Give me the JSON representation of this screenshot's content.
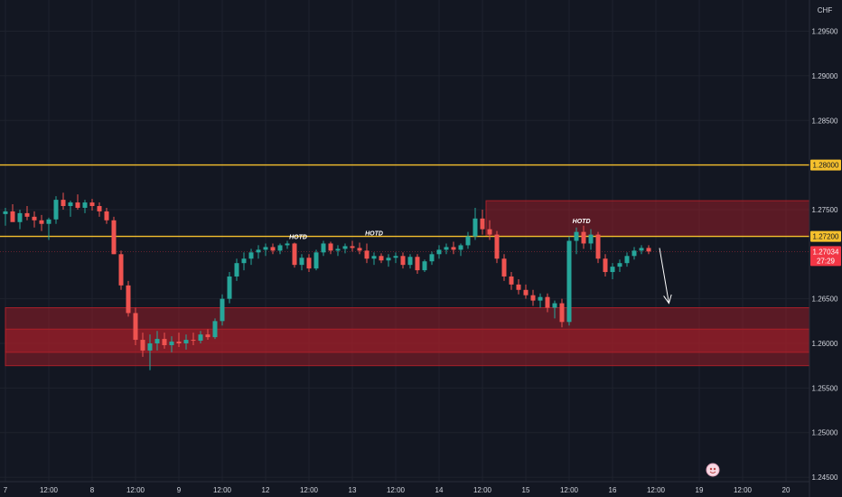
{
  "chart_data": {
    "type": "candlestick",
    "currency": "CHF",
    "ylim": [
      1.2445,
      1.2985
    ],
    "grid": true,
    "y_ticks": [
      "1.29500",
      "1.29000",
      "1.28500",
      "1.28000",
      "1.27500",
      "1.27200",
      "1.27034",
      "1.26500",
      "1.26000",
      "1.25500",
      "1.25000",
      "1.24500"
    ],
    "y_tick_values": [
      1.295,
      1.29,
      1.285,
      1.28,
      1.275,
      1.272,
      1.27034,
      1.265,
      1.26,
      1.255,
      1.25,
      1.245
    ],
    "x_ticks": [
      "7",
      "12:00",
      "8",
      "12:00",
      "9",
      "12:00",
      "12",
      "12:00",
      "13",
      "12:00",
      "14",
      "12:00",
      "15",
      "12:00",
      "16",
      "12:00",
      "19",
      "12:00",
      "20"
    ],
    "x_tick_index": [
      0,
      6,
      12,
      18,
      24,
      30,
      36,
      42,
      48,
      54,
      60,
      66,
      72,
      78,
      84,
      90,
      96,
      102,
      108
    ],
    "horizontal_levels": [
      {
        "price": 1.28,
        "label": "1.28000",
        "color": "#f5c02d"
      },
      {
        "price": 1.272,
        "label": "1.27200",
        "color": "#f5c02d"
      }
    ],
    "last_price": {
      "label": "1.27034",
      "countdown": "27:29",
      "color": "#f23645"
    },
    "zones": [
      {
        "from_price": 1.272,
        "to_price": 1.276,
        "start_index": 66.5,
        "end_index": 112,
        "color": "#b2202a"
      },
      {
        "from_price": 1.259,
        "to_price": 1.2616,
        "start_index": 0,
        "end_index": 112,
        "color": "#b2202a"
      },
      {
        "from_price": 1.2575,
        "to_price": 1.264,
        "start_index": 0,
        "end_index": 112,
        "color": "#b2202a"
      }
    ],
    "annotations": [
      {
        "text": "HOTD",
        "index": 40.5,
        "price": 1.2717
      },
      {
        "text": "HOTD",
        "index": 51,
        "price": 1.2721
      },
      {
        "text": "HOTD",
        "index": 79.7,
        "price": 1.2735
      }
    ],
    "arrow": {
      "from_index": 90.5,
      "from_price": 1.2707,
      "to_index": 91.8,
      "to_price": 1.2645,
      "color": "#ffffff"
    },
    "candle_colors": {
      "up": "#26a69a",
      "down": "#ef5350"
    },
    "ohlc_series": [
      [
        1.2745,
        1.2752,
        1.2732,
        1.2748
      ],
      [
        1.2748,
        1.2756,
        1.274,
        1.2736
      ],
      [
        1.2736,
        1.275,
        1.2728,
        1.2746
      ],
      [
        1.2746,
        1.2754,
        1.2738,
        1.2742
      ],
      [
        1.2742,
        1.2748,
        1.273,
        1.2738
      ],
      [
        1.2738,
        1.2744,
        1.2726,
        1.2734
      ],
      [
        1.2734,
        1.2741,
        1.2716,
        1.2739
      ],
      [
        1.2739,
        1.2765,
        1.2734,
        1.2761
      ],
      [
        1.2761,
        1.2769,
        1.275,
        1.2754
      ],
      [
        1.2754,
        1.276,
        1.2742,
        1.2758
      ],
      [
        1.2758,
        1.2767,
        1.275,
        1.2752
      ],
      [
        1.2752,
        1.2761,
        1.2746,
        1.2758
      ],
      [
        1.2758,
        1.2762,
        1.2749,
        1.2754
      ],
      [
        1.2754,
        1.2758,
        1.2742,
        1.2748
      ],
      [
        1.2748,
        1.2752,
        1.2734,
        1.2738
      ],
      [
        1.2738,
        1.2742,
        1.27,
        1.27
      ],
      [
        1.27,
        1.2704,
        1.266,
        1.2665
      ],
      [
        1.2665,
        1.267,
        1.263,
        1.2634
      ],
      [
        1.2634,
        1.264,
        1.2598,
        1.2604
      ],
      [
        1.2604,
        1.2612,
        1.2585,
        1.2592
      ],
      [
        1.2592,
        1.261,
        1.257,
        1.26
      ],
      [
        1.26,
        1.2614,
        1.2592,
        1.2605
      ],
      [
        1.2605,
        1.2612,
        1.2594,
        1.2598
      ],
      [
        1.2598,
        1.2608,
        1.259,
        1.2602
      ],
      [
        1.2602,
        1.2612,
        1.2596,
        1.26
      ],
      [
        1.26,
        1.261,
        1.2593,
        1.2604
      ],
      [
        1.2604,
        1.2612,
        1.2598,
        1.2603
      ],
      [
        1.2603,
        1.2614,
        1.26,
        1.261
      ],
      [
        1.261,
        1.2616,
        1.2604,
        1.2607
      ],
      [
        1.2607,
        1.2628,
        1.2605,
        1.2625
      ],
      [
        1.2625,
        1.2655,
        1.262,
        1.265
      ],
      [
        1.265,
        1.268,
        1.2645,
        1.2675
      ],
      [
        1.2675,
        1.2695,
        1.267,
        1.269
      ],
      [
        1.269,
        1.2702,
        1.2682,
        1.2695
      ],
      [
        1.2695,
        1.2706,
        1.2688,
        1.2702
      ],
      [
        1.2702,
        1.271,
        1.2695,
        1.2705
      ],
      [
        1.2705,
        1.2712,
        1.2698,
        1.2708
      ],
      [
        1.2708,
        1.2712,
        1.27,
        1.2704
      ],
      [
        1.2704,
        1.2712,
        1.27,
        1.271
      ],
      [
        1.271,
        1.2715,
        1.2706,
        1.2712
      ],
      [
        1.2712,
        1.2713,
        1.2685,
        1.2688
      ],
      [
        1.2688,
        1.27,
        1.2682,
        1.2696
      ],
      [
        1.2696,
        1.27,
        1.268,
        1.2684
      ],
      [
        1.2684,
        1.2705,
        1.2682,
        1.2702
      ],
      [
        1.2702,
        1.2715,
        1.2698,
        1.2712
      ],
      [
        1.2712,
        1.2714,
        1.27,
        1.2704
      ],
      [
        1.2704,
        1.271,
        1.2698,
        1.2706
      ],
      [
        1.2706,
        1.2712,
        1.2701,
        1.2709
      ],
      [
        1.2709,
        1.2715,
        1.2703,
        1.2707
      ],
      [
        1.2707,
        1.2713,
        1.27,
        1.2704
      ],
      [
        1.2704,
        1.2712,
        1.269,
        1.2695
      ],
      [
        1.2695,
        1.2702,
        1.2688,
        1.2698
      ],
      [
        1.2698,
        1.2701,
        1.269,
        1.2693
      ],
      [
        1.2693,
        1.27,
        1.2686,
        1.2696
      ],
      [
        1.2696,
        1.2702,
        1.269,
        1.2698
      ],
      [
        1.2698,
        1.2702,
        1.2684,
        1.2688
      ],
      [
        1.2688,
        1.27,
        1.2684,
        1.2697
      ],
      [
        1.2697,
        1.27,
        1.2678,
        1.2682
      ],
      [
        1.2682,
        1.2694,
        1.268,
        1.2692
      ],
      [
        1.2692,
        1.2703,
        1.2688,
        1.27
      ],
      [
        1.27,
        1.271,
        1.2695,
        1.2705
      ],
      [
        1.2705,
        1.2712,
        1.27,
        1.2708
      ],
      [
        1.2708,
        1.2714,
        1.27,
        1.2705
      ],
      [
        1.2705,
        1.2712,
        1.2698,
        1.271
      ],
      [
        1.271,
        1.2725,
        1.2706,
        1.272
      ],
      [
        1.272,
        1.2752,
        1.2716,
        1.274
      ],
      [
        1.274,
        1.275,
        1.2722,
        1.2728
      ],
      [
        1.2728,
        1.2738,
        1.2716,
        1.2722
      ],
      [
        1.2722,
        1.2726,
        1.269,
        1.2695
      ],
      [
        1.2695,
        1.27,
        1.267,
        1.2675
      ],
      [
        1.2675,
        1.268,
        1.266,
        1.2666
      ],
      [
        1.2666,
        1.2672,
        1.2655,
        1.266
      ],
      [
        1.266,
        1.2666,
        1.265,
        1.2654
      ],
      [
        1.2654,
        1.266,
        1.2642,
        1.2648
      ],
      [
        1.2648,
        1.2656,
        1.264,
        1.2652
      ],
      [
        1.2652,
        1.2656,
        1.2635,
        1.264
      ],
      [
        1.264,
        1.2648,
        1.2628,
        1.2645
      ],
      [
        1.2645,
        1.265,
        1.2618,
        1.2624
      ],
      [
        1.2624,
        1.272,
        1.262,
        1.2715
      ],
      [
        1.2715,
        1.273,
        1.27,
        1.2725
      ],
      [
        1.2725,
        1.2732,
        1.2706,
        1.2712
      ],
      [
        1.2712,
        1.2728,
        1.2705,
        1.2722
      ],
      [
        1.2722,
        1.2725,
        1.269,
        1.2695
      ],
      [
        1.2695,
        1.27,
        1.2675,
        1.268
      ],
      [
        1.268,
        1.269,
        1.2672,
        1.2686
      ],
      [
        1.2686,
        1.2694,
        1.268,
        1.269
      ],
      [
        1.269,
        1.2702,
        1.2686,
        1.2698
      ],
      [
        1.2698,
        1.2708,
        1.2694,
        1.2704
      ],
      [
        1.2704,
        1.271,
        1.27,
        1.2707
      ],
      [
        1.2707,
        1.271,
        1.27,
        1.2703
      ]
    ]
  }
}
